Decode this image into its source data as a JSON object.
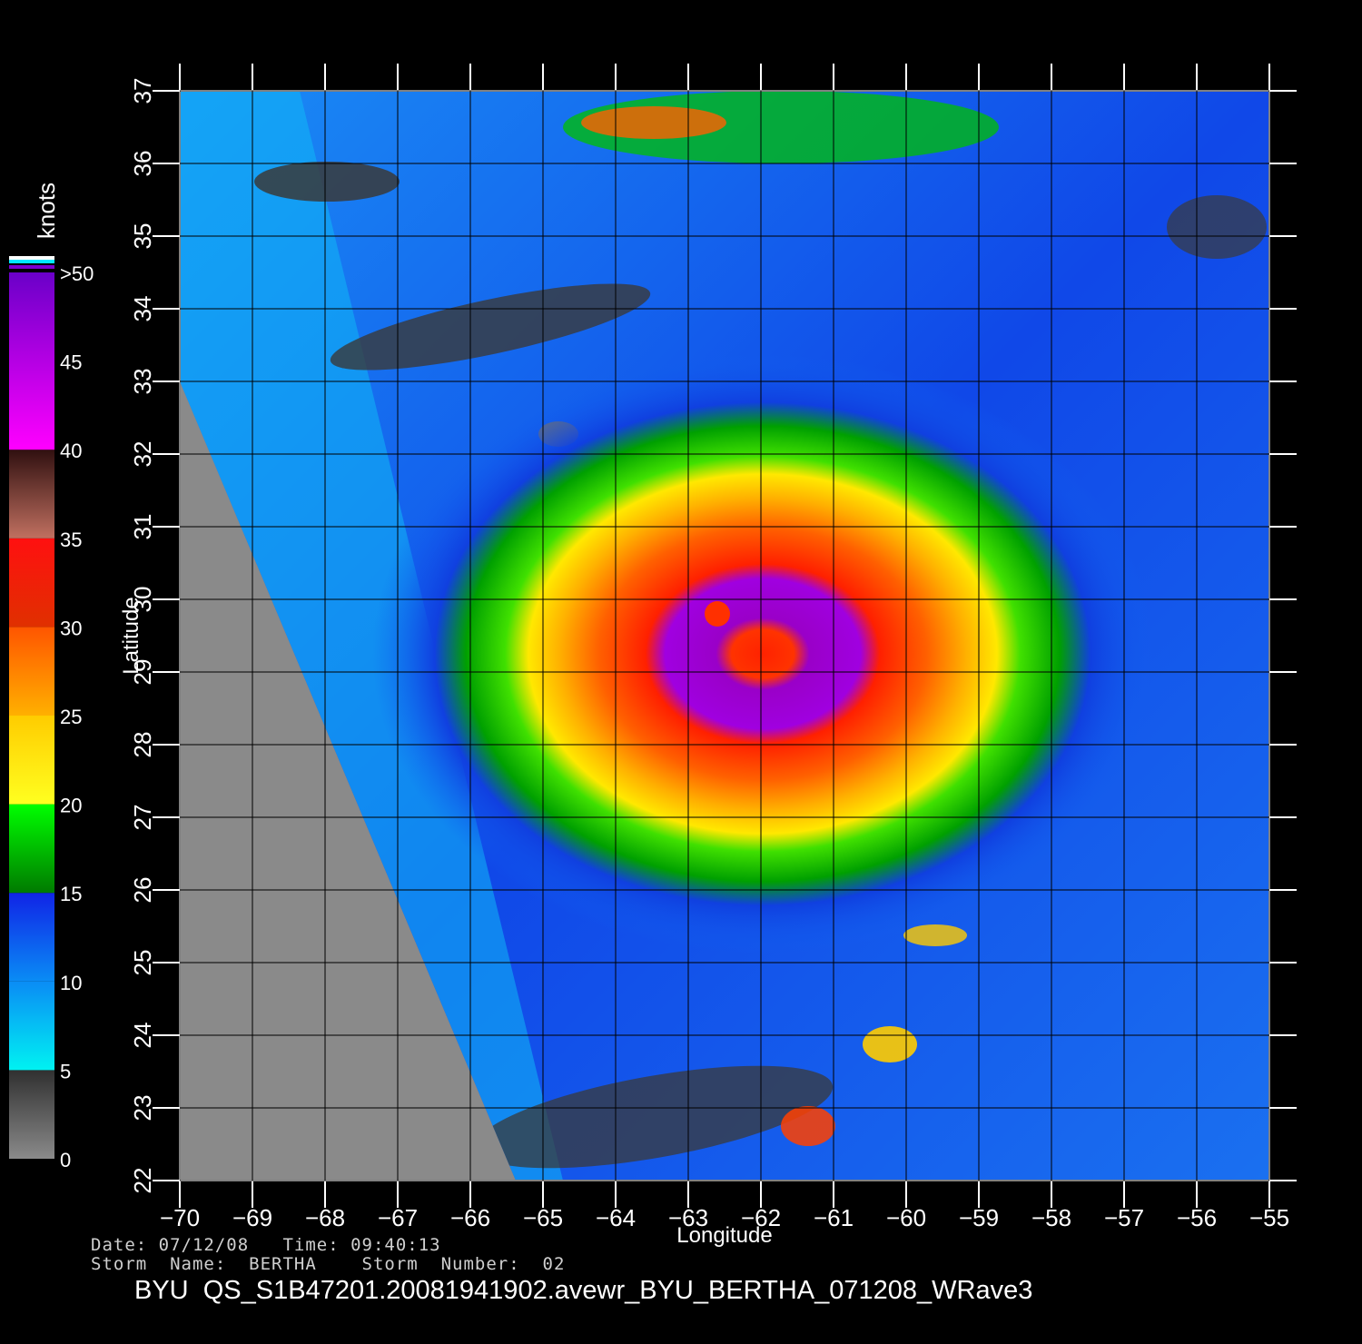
{
  "chart_data": {
    "type": "map",
    "xlabel": "Longitude",
    "ylabel": "Latitude",
    "xlim": [
      -70,
      -55
    ],
    "ylim": [
      22,
      37
    ],
    "x_ticks": [
      "−70",
      "−69",
      "−68",
      "−67",
      "−66",
      "−65",
      "−64",
      "−63",
      "−62",
      "−61",
      "−60",
      "−59",
      "−58",
      "−57",
      "−56",
      "−55"
    ],
    "y_ticks": [
      "22",
      "23",
      "24",
      "25",
      "26",
      "27",
      "28",
      "29",
      "30",
      "31",
      "32",
      "33",
      "34",
      "35",
      "36",
      "37"
    ],
    "grid": true,
    "storm_center": {
      "lon": -62.6,
      "lat": 29.8
    },
    "colorbar": {
      "title": "knots",
      "labels": [
        ">50",
        "45",
        "40",
        "35",
        "30",
        "25",
        "20",
        "15",
        "10",
        "5",
        "0"
      ],
      "bands": [
        {
          "from": 0,
          "to": 5,
          "colors": [
            "#8a8a8a",
            "#303030"
          ]
        },
        {
          "from": 5,
          "to": 10,
          "colors": [
            "#00f2f2",
            "#0a8cf5"
          ]
        },
        {
          "from": 10,
          "to": 15,
          "colors": [
            "#0a8cf5",
            "#1024e6"
          ]
        },
        {
          "from": 15,
          "to": 20,
          "colors": [
            "#007a00",
            "#00ff00"
          ]
        },
        {
          "from": 20,
          "to": 25,
          "colors": [
            "#ffff20",
            "#ffcc00"
          ]
        },
        {
          "from": 25,
          "to": 30,
          "colors": [
            "#ffb000",
            "#ff5500"
          ]
        },
        {
          "from": 30,
          "to": 35,
          "colors": [
            "#e03000",
            "#ff1010"
          ]
        },
        {
          "from": 35,
          "to": 40,
          "colors": [
            "#c07060",
            "#301010"
          ]
        },
        {
          "from": 40,
          "to": 50,
          "colors": [
            "#ff00ff",
            "#6a00c8"
          ]
        }
      ]
    }
  },
  "meta": {
    "date_line": "Date: 07/12/08   Time: 09:40:13",
    "storm_line": "Storm  Name:  BERTHA    Storm  Number:  02"
  },
  "footer_title": "BYU  QS_S1B47201.20081941902.avewr_BYU_BERTHA_071208_WRave3"
}
